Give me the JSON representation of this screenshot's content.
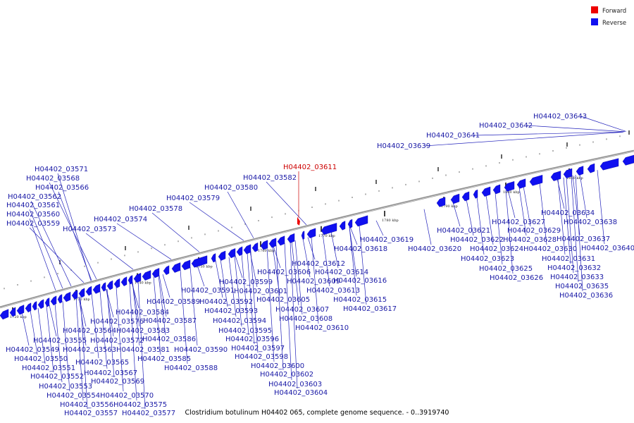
{
  "legend": {
    "items": [
      {
        "label": "Forward",
        "color": "#ee0000"
      },
      {
        "label": "Reverse",
        "color": "#1010f0"
      }
    ]
  },
  "caption": "Clostridium botulinum H04402 065, complete genome sequence. - 0..3919740",
  "colors": {
    "forward": "#ee0000",
    "reverse": "#1010f0",
    "leader": "#2222bb",
    "backbone": "#999999"
  },
  "scale_labels": [
    "1720 kbp",
    "1730 kbp",
    "1740 kbp",
    "1750 kbp",
    "1760 kbp",
    "1770 kbp",
    "1780 kbp",
    "1790 kbp",
    "1800 kbp",
    "1810 kbp"
  ],
  "genes": [
    {
      "id": "H04402_03549",
      "strand": "reverse"
    },
    {
      "id": "H04402_03550",
      "strand": "reverse"
    },
    {
      "id": "H04402_03551",
      "strand": "reverse"
    },
    {
      "id": "H04402_03552",
      "strand": "reverse"
    },
    {
      "id": "H04402_03553",
      "strand": "reverse"
    },
    {
      "id": "H04402_03554",
      "strand": "reverse"
    },
    {
      "id": "H04402_03555",
      "strand": "reverse"
    },
    {
      "id": "H04402_03556",
      "strand": "reverse"
    },
    {
      "id": "H04402_03557",
      "strand": "reverse"
    },
    {
      "id": "H04402_03559",
      "strand": "reverse"
    },
    {
      "id": "H04402_03560",
      "strand": "reverse"
    },
    {
      "id": "H04402_03561",
      "strand": "reverse"
    },
    {
      "id": "H04402_03562",
      "strand": "reverse"
    },
    {
      "id": "H04402_03563",
      "strand": "reverse"
    },
    {
      "id": "H04402_03564",
      "strand": "reverse"
    },
    {
      "id": "H04402_03565",
      "strand": "reverse"
    },
    {
      "id": "H04402_03566",
      "strand": "reverse"
    },
    {
      "id": "H04402_03567",
      "strand": "reverse"
    },
    {
      "id": "H04402_03568",
      "strand": "reverse"
    },
    {
      "id": "H04402_03569",
      "strand": "reverse"
    },
    {
      "id": "H04402_03570",
      "strand": "reverse"
    },
    {
      "id": "H04402_03571",
      "strand": "reverse"
    },
    {
      "id": "H04402_03572",
      "strand": "reverse"
    },
    {
      "id": "H04402_03573",
      "strand": "reverse"
    },
    {
      "id": "H04402_03574",
      "strand": "reverse"
    },
    {
      "id": "H04402_03575",
      "strand": "reverse"
    },
    {
      "id": "H04402_03576",
      "strand": "reverse"
    },
    {
      "id": "H04402_03577",
      "strand": "reverse"
    },
    {
      "id": "H04402_03578",
      "strand": "reverse"
    },
    {
      "id": "H04402_03579",
      "strand": "reverse"
    },
    {
      "id": "H04402_03580",
      "strand": "reverse"
    },
    {
      "id": "H04402_03581",
      "strand": "reverse"
    },
    {
      "id": "H04402_03582",
      "strand": "reverse"
    },
    {
      "id": "H04402_03583",
      "strand": "reverse"
    },
    {
      "id": "H04402_03584",
      "strand": "reverse"
    },
    {
      "id": "H04402_03585",
      "strand": "reverse"
    },
    {
      "id": "H04402_03586",
      "strand": "reverse"
    },
    {
      "id": "H04402_03587",
      "strand": "reverse"
    },
    {
      "id": "H04402_03588",
      "strand": "reverse"
    },
    {
      "id": "H04402_03589",
      "strand": "reverse"
    },
    {
      "id": "H04402_03590",
      "strand": "reverse"
    },
    {
      "id": "H04402_03591",
      "strand": "reverse"
    },
    {
      "id": "H04402_03592",
      "strand": "reverse"
    },
    {
      "id": "H04402_03593",
      "strand": "reverse"
    },
    {
      "id": "H04402_03594",
      "strand": "reverse"
    },
    {
      "id": "H04402_03595",
      "strand": "reverse"
    },
    {
      "id": "H04402_03596",
      "strand": "reverse"
    },
    {
      "id": "H04402_03597",
      "strand": "reverse"
    },
    {
      "id": "H04402_03598",
      "strand": "reverse"
    },
    {
      "id": "H04402_03599",
      "strand": "reverse"
    },
    {
      "id": "H04402_03600",
      "strand": "reverse"
    },
    {
      "id": "H04402_03601",
      "strand": "reverse"
    },
    {
      "id": "H04402_03602",
      "strand": "reverse"
    },
    {
      "id": "H04402_03603",
      "strand": "reverse"
    },
    {
      "id": "H04402_03604",
      "strand": "reverse"
    },
    {
      "id": "H04402_03605",
      "strand": "reverse"
    },
    {
      "id": "H04402_03606",
      "strand": "reverse"
    },
    {
      "id": "H04402_03607",
      "strand": "reverse"
    },
    {
      "id": "H04402_03608",
      "strand": "reverse"
    },
    {
      "id": "H04402_03609",
      "strand": "reverse"
    },
    {
      "id": "H04402_03610",
      "strand": "reverse"
    },
    {
      "id": "H04402_03611",
      "strand": "forward"
    },
    {
      "id": "H04402_03612",
      "strand": "reverse"
    },
    {
      "id": "H04402_03613",
      "strand": "reverse"
    },
    {
      "id": "H04402_03614",
      "strand": "reverse"
    },
    {
      "id": "H04402_03615",
      "strand": "reverse"
    },
    {
      "id": "H04402_03616",
      "strand": "reverse"
    },
    {
      "id": "H04402_03617",
      "strand": "reverse"
    },
    {
      "id": "H04402_03618",
      "strand": "reverse"
    },
    {
      "id": "H04402_03619",
      "strand": "reverse"
    },
    {
      "id": "H04402_03620",
      "strand": "reverse"
    },
    {
      "id": "H04402_03621",
      "strand": "reverse"
    },
    {
      "id": "H04402_03622",
      "strand": "reverse"
    },
    {
      "id": "H04402_03623",
      "strand": "reverse"
    },
    {
      "id": "H04402_03624",
      "strand": "reverse"
    },
    {
      "id": "H04402_03625",
      "strand": "reverse"
    },
    {
      "id": "H04402_03626",
      "strand": "reverse"
    },
    {
      "id": "H04402_03627",
      "strand": "reverse"
    },
    {
      "id": "H04402_03628",
      "strand": "reverse"
    },
    {
      "id": "H04402_03629",
      "strand": "reverse"
    },
    {
      "id": "H04402_03630",
      "strand": "reverse"
    },
    {
      "id": "H04402_03631",
      "strand": "reverse"
    },
    {
      "id": "H04402_03632",
      "strand": "reverse"
    },
    {
      "id": "H04402_03633",
      "strand": "reverse"
    },
    {
      "id": "H04402_03634",
      "strand": "reverse"
    },
    {
      "id": "H04402_03635",
      "strand": "reverse"
    },
    {
      "id": "H04402_03636",
      "strand": "reverse"
    },
    {
      "id": "H04402_03637",
      "strand": "reverse"
    },
    {
      "id": "H04402_03638",
      "strand": "reverse"
    },
    {
      "id": "H04402_03639",
      "strand": "reverse"
    },
    {
      "id": "H04402_03640",
      "strand": "reverse"
    },
    {
      "id": "H04402_03641",
      "strand": "reverse"
    },
    {
      "id": "H04402_03642",
      "strand": "reverse"
    },
    {
      "id": "H04402_03643",
      "strand": "reverse"
    }
  ]
}
